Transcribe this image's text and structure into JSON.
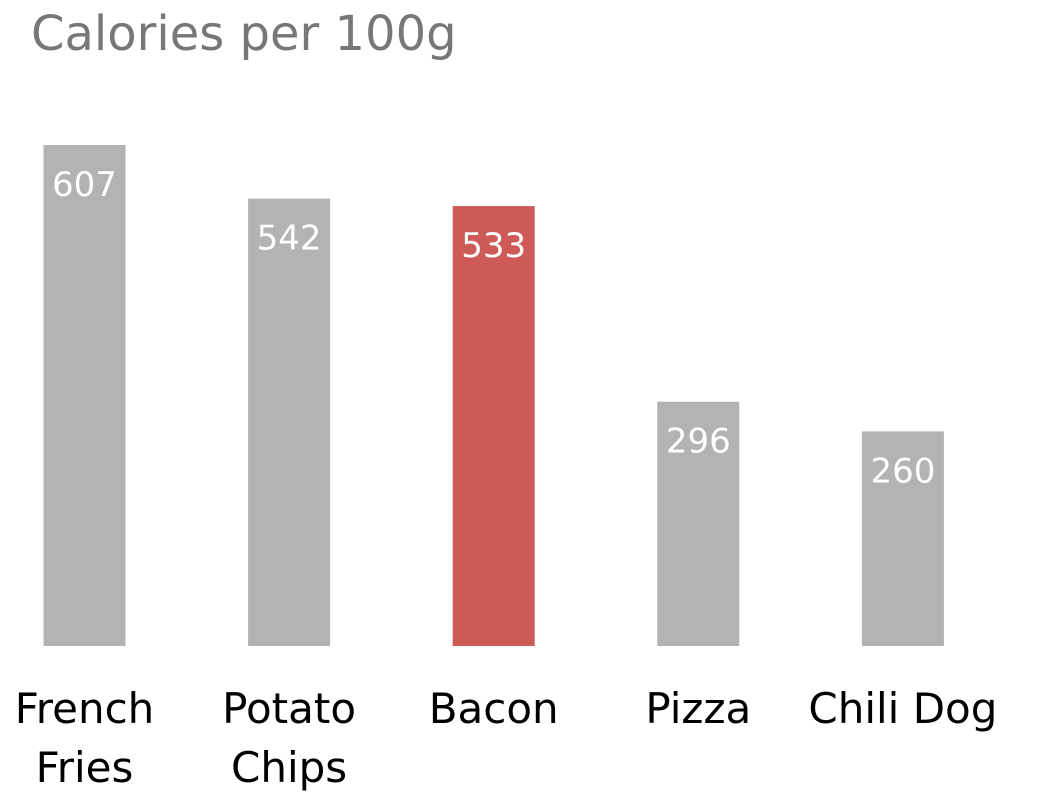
{
  "chart_data": {
    "type": "bar",
    "title": "Calories per 100g",
    "categories": [
      "French Fries",
      "Potato Chips",
      "Bacon",
      "Pizza",
      "Chili Dog"
    ],
    "category_lines": [
      [
        "French",
        "Fries"
      ],
      [
        "Potato",
        "Chips"
      ],
      [
        "Bacon"
      ],
      [
        "Pizza"
      ],
      [
        "Chili Dog"
      ]
    ],
    "values": [
      607,
      542,
      533,
      296,
      260
    ],
    "data_labels": [
      "607",
      "542",
      "533",
      "296",
      "260"
    ],
    "highlight_index": 2,
    "xlabel": "",
    "ylabel": "",
    "ylim": [
      0,
      607
    ],
    "grid": false,
    "legend": "none",
    "colors": {
      "bar": "#b3b3b3",
      "highlight": "#cd5a56",
      "title": "#777777",
      "data_label": "#ffffff",
      "category_label": "#000000"
    }
  }
}
